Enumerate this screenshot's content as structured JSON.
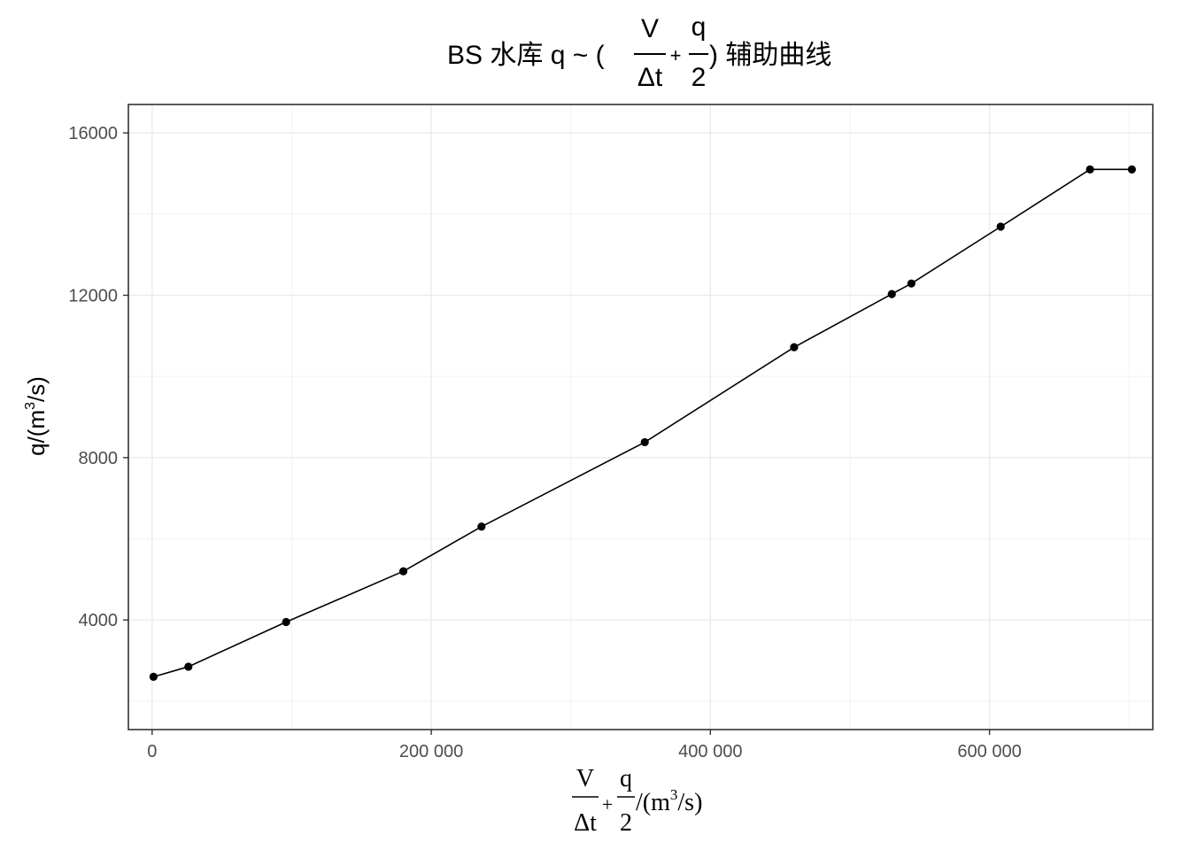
{
  "chart_data": {
    "type": "line",
    "title": {
      "prefix": "BS 水库 q ~ (",
      "frac1_num": "V",
      "frac1_den": "Δt",
      "plus": "+",
      "frac2_num": "q",
      "frac2_den": "2",
      "suffix": ") 辅助曲线"
    },
    "xlabel": {
      "frac1_num": "V",
      "frac1_den": "Δt",
      "plus": "+",
      "frac2_num": "q",
      "frac2_den": "2",
      "unit_prefix": "/(m",
      "unit_sup": "3",
      "unit_suffix": "/s)"
    },
    "ylabel": {
      "prefix": "q/(m",
      "sup": "3",
      "suffix": "/s)"
    },
    "xlim": [
      -17000,
      717000
    ],
    "ylim": [
      1300,
      16700
    ],
    "x_ticks": [
      0,
      200000,
      400000,
      600000
    ],
    "x_tick_labels": [
      "0",
      "200 000",
      "400 000",
      "600 000"
    ],
    "y_ticks": [
      4000,
      8000,
      12000,
      16000
    ],
    "y_tick_labels": [
      "4000",
      "8000",
      "12000",
      "16000"
    ],
    "grid": true,
    "series": [
      {
        "x": [
          1000,
          26000,
          96000,
          180000,
          236000,
          353000,
          460000,
          530000,
          544000,
          608000,
          672000,
          702000
        ],
        "y": [
          2600,
          2850,
          3950,
          5200,
          6300,
          8380,
          10720,
          12030,
          12290,
          13690,
          15100,
          15100
        ]
      }
    ]
  }
}
